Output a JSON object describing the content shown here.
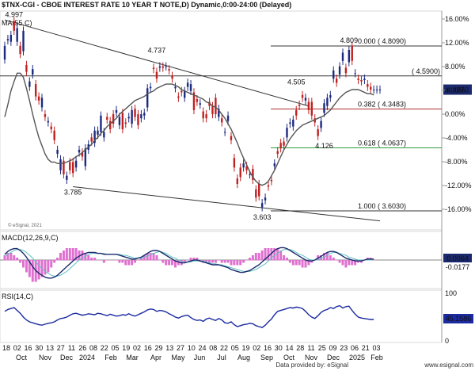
{
  "chart_data": {
    "type": "candlestick",
    "title": "$TNX-CGI - CBOE INTEREST RATE 10 YEAR T NOTE,D) Dynamic,0:00-24:00 (Delayed)",
    "copyright": "© eSignal, 2021",
    "indicator_ma_label": "MA(55,C)",
    "last_price_label": "4.4870",
    "pct_axis_labels": [
      "16.00%",
      "12.00%",
      "8.00%",
      "4.00%",
      "0.00%",
      "-4.00%",
      "-8.00%",
      "-12.00%",
      "-16.00%"
    ],
    "x_axis_day_labels": [
      "18",
      "02",
      "16",
      "30",
      "13",
      "27",
      "11",
      "26",
      "08",
      "22",
      "05",
      "19",
      "02",
      "16",
      "29",
      "13",
      "27",
      "10",
      "24",
      "08",
      "22",
      "05",
      "19",
      "02",
      "16",
      "30",
      "14",
      "28",
      "11",
      "25",
      "09",
      "23",
      "06",
      "21",
      "03"
    ],
    "x_axis_month_labels": [
      "Oct",
      "Nov",
      "Dec",
      "2024",
      "Feb",
      "Mar",
      "Apr",
      "May",
      "Jun",
      "Jul",
      "Aug",
      "Sep",
      "Oct",
      "Nov",
      "Dec",
      "2025",
      "Feb"
    ],
    "annotations": {
      "high_2023": "4.997",
      "low_2023": "3.785",
      "high_apr": "4.737",
      "low_sep": "3.603",
      "high_jul": "4.505",
      "low_dec": "4.126",
      "high_jan": "4.809"
    },
    "fib_levels": [
      {
        "label": "0.000 ( 4.8090)",
        "value": 4.809,
        "color": "#333333"
      },
      {
        "label": "( 4.5900)",
        "value": 4.59,
        "color": "#333333"
      },
      {
        "label": "0.382 ( 4.3483)",
        "value": 4.3483,
        "color": "#b03030"
      },
      {
        "label": "0.618 ( 4.0637)",
        "value": 4.0637,
        "color": "#2e9e3e"
      },
      {
        "label": "1.000 ( 3.6030)",
        "value": 3.603,
        "color": "#333333"
      }
    ],
    "trendlines": [
      {
        "name": "upper downtrend",
        "from": [
          0,
          5.0
        ],
        "to": [
          98,
          4.37
        ]
      },
      {
        "name": "lower downtrend",
        "from": [
          22,
          3.78
        ],
        "to": [
          121,
          3.53
        ]
      }
    ],
    "series": [
      {
        "type": "candles",
        "candles": [
          [
            4.71,
            4.81
          ],
          [
            4.85,
            4.86
          ],
          [
            4.84,
            4.89
          ],
          [
            4.99,
            4.92
          ],
          [
            4.84,
            4.94
          ],
          [
            4.81,
            4.75
          ],
          [
            4.77,
            4.92
          ],
          [
            4.67,
            4.62
          ],
          [
            4.51,
            4.55
          ],
          [
            4.6,
            4.64
          ],
          [
            4.53,
            4.44
          ],
          [
            4.44,
            4.41
          ],
          [
            4.36,
            4.43
          ],
          [
            4.31,
            4.29
          ],
          [
            4.25,
            4.26
          ],
          [
            4.22,
            4.2
          ],
          [
            4.19,
            4.12
          ],
          [
            4.02,
            4.05
          ],
          [
            3.9,
            3.98
          ],
          [
            3.97,
            3.87
          ],
          [
            3.83,
            3.86
          ],
          [
            3.96,
            3.9
          ],
          [
            3.96,
            3.88
          ],
          [
            3.92,
            3.97
          ],
          [
            4.03,
            4.05
          ],
          [
            4.03,
            4.0
          ],
          [
            3.93,
            4.06
          ],
          [
            4.05,
            4.09
          ],
          [
            4.14,
            4.11
          ],
          [
            4.1,
            4.19
          ],
          [
            4.16,
            4.19
          ],
          [
            4.18,
            4.3
          ],
          [
            4.14,
            4.18
          ],
          [
            4.29,
            4.27
          ],
          [
            4.26,
            4.2
          ],
          [
            4.31,
            4.24
          ],
          [
            4.32,
            4.34
          ],
          [
            4.23,
            4.29
          ],
          [
            4.32,
            4.2
          ],
          [
            4.25,
            4.24
          ],
          [
            4.28,
            4.29
          ],
          [
            4.24,
            4.34
          ],
          [
            4.35,
            4.29
          ],
          [
            4.31,
            4.23
          ],
          [
            4.28,
            4.31
          ],
          [
            4.3,
            4.32
          ],
          [
            4.36,
            4.5
          ],
          [
            4.5,
            4.51
          ],
          [
            4.65,
            4.64
          ],
          [
            4.62,
            4.57
          ],
          [
            4.65,
            4.66
          ],
          [
            4.66,
            4.65
          ],
          [
            4.66,
            4.66
          ],
          [
            4.64,
            4.63
          ],
          [
            4.59,
            4.57
          ],
          [
            4.5,
            4.51
          ],
          [
            4.44,
            4.43
          ],
          [
            4.48,
            4.47
          ],
          [
            4.43,
            4.48
          ],
          [
            4.51,
            4.54
          ],
          [
            4.48,
            4.53
          ],
          [
            4.47,
            4.34
          ],
          [
            4.42,
            4.4
          ],
          [
            4.38,
            4.39
          ],
          [
            4.33,
            4.28
          ],
          [
            4.31,
            4.28
          ],
          [
            4.4,
            4.37
          ],
          [
            4.37,
            4.31
          ],
          [
            4.43,
            4.31
          ],
          [
            4.29,
            4.35
          ],
          [
            4.28,
            4.25
          ],
          [
            4.18,
            4.18
          ],
          [
            4.26,
            4.3
          ],
          [
            4.15,
            4.12
          ],
          [
            3.99,
            3.92
          ],
          [
            3.84,
            3.8
          ],
          [
            3.92,
            3.85
          ],
          [
            3.92,
            3.95
          ],
          [
            3.93,
            3.9
          ],
          [
            3.87,
            3.87
          ],
          [
            3.91,
            3.83
          ],
          [
            3.76,
            3.7
          ],
          [
            3.8,
            3.71
          ],
          [
            3.63,
            3.66
          ],
          [
            3.68,
            3.7
          ],
          [
            3.79,
            3.78
          ],
          [
            3.83,
            3.82
          ],
          [
            3.93,
            3.95
          ],
          [
            4.04,
            4.02
          ],
          [
            4.1,
            4.06
          ],
          [
            4.11,
            4.08
          ],
          [
            4.14,
            4.21
          ],
          [
            4.24,
            4.25
          ],
          [
            4.22,
            4.27
          ],
          [
            4.34,
            4.3
          ],
          [
            4.38,
            4.37
          ],
          [
            4.45,
            4.43
          ],
          [
            4.41,
            4.43
          ],
          [
            4.4,
            4.34
          ],
          [
            4.4,
            4.3
          ],
          [
            4.28,
            4.25
          ],
          [
            4.2,
            4.15
          ],
          [
            4.21,
            4.26
          ],
          [
            4.32,
            4.39
          ],
          [
            4.37,
            4.43
          ],
          [
            4.43,
            4.45
          ],
          [
            4.57,
            4.63
          ],
          [
            4.57,
            4.54
          ],
          [
            4.6,
            4.66
          ],
          [
            4.7,
            4.76
          ],
          [
            4.65,
            4.61
          ],
          [
            4.69,
            4.78
          ],
          [
            4.81,
            4.7
          ],
          [
            4.61,
            4.61
          ],
          [
            4.57,
            4.56
          ],
          [
            4.56,
            4.55
          ],
          [
            4.56,
            4.57
          ],
          [
            4.53,
            4.51
          ],
          [
            4.51,
            4.49
          ],
          [
            4.49,
            4.49
          ],
          [
            4.49,
            4.49
          ],
          [
            4.49,
            4.49
          ]
        ]
      },
      {
        "type": "moving_average",
        "name": "MA(55,C)",
        "values": [
          4.29,
          4.38,
          4.48,
          4.55,
          4.61,
          4.61,
          4.58,
          4.5,
          4.41,
          4.31,
          4.22,
          4.14,
          4.08,
          4.02,
          3.98,
          3.96,
          3.96,
          3.95,
          3.95,
          3.95,
          3.96,
          3.97,
          3.98,
          4.0,
          4.01,
          4.03,
          4.05,
          4.07,
          4.09,
          4.12,
          4.14,
          4.17,
          4.19,
          4.22,
          4.24,
          4.26,
          4.28,
          4.31,
          4.33,
          4.35,
          4.37,
          4.39,
          4.41,
          4.42,
          4.43,
          4.44,
          4.46,
          4.47,
          4.48,
          4.5,
          4.51,
          4.52,
          4.53,
          4.53,
          4.53,
          4.52,
          4.51,
          4.49,
          4.48,
          4.47,
          4.46,
          4.45,
          4.44,
          4.43,
          4.42,
          4.4,
          4.39,
          4.37,
          4.36,
          4.34,
          4.31,
          4.28,
          4.24,
          4.2,
          4.15,
          4.1,
          4.04,
          3.99,
          3.94,
          3.89,
          3.85,
          3.82,
          3.8,
          3.79,
          3.8,
          3.82,
          3.86,
          3.9,
          3.95,
          4.0,
          4.05,
          4.09,
          4.13,
          4.16,
          4.19,
          4.21,
          4.23,
          4.24,
          4.25,
          4.26,
          4.27,
          4.28,
          4.29,
          4.3,
          4.32,
          4.34,
          4.37,
          4.4,
          4.43,
          4.45,
          4.47,
          4.48,
          4.49,
          4.49,
          4.49,
          4.48,
          4.47,
          4.46,
          4.46,
          4.45
        ]
      }
    ],
    "macd": {
      "label": "MACD(12,26,9,C)",
      "value_label": "0.0064",
      "value_label2": "-0.0177",
      "macd": [
        0.06,
        0.09,
        0.11,
        0.12,
        0.12,
        0.1,
        0.07,
        0.03,
        -0.02,
        -0.07,
        -0.11,
        -0.14,
        -0.16,
        -0.18,
        -0.19,
        -0.19,
        -0.18,
        -0.16,
        -0.13,
        -0.1,
        -0.07,
        -0.04,
        -0.01,
        0.02,
        0.04,
        0.06,
        0.07,
        0.08,
        0.08,
        0.08,
        0.07,
        0.07,
        0.06,
        0.06,
        0.06,
        0.06,
        0.06,
        0.05,
        0.04,
        0.03,
        0.02,
        0.01,
        0.01,
        0.02,
        0.03,
        0.05,
        0.07,
        0.09,
        0.1,
        0.1,
        0.09,
        0.07,
        0.05,
        0.03,
        0.01,
        -0.01,
        -0.02,
        -0.03,
        -0.03,
        -0.02,
        -0.01,
        0.0,
        0.0,
        -0.01,
        -0.02,
        -0.03,
        -0.04,
        -0.05,
        -0.05,
        -0.05,
        -0.06,
        -0.07,
        -0.08,
        -0.1,
        -0.11,
        -0.12,
        -0.13,
        -0.13,
        -0.12,
        -0.11,
        -0.09,
        -0.07,
        -0.05,
        -0.02,
        0.01,
        0.04,
        0.07,
        0.1,
        0.12,
        0.13,
        0.13,
        0.12,
        0.1,
        0.08,
        0.06,
        0.04,
        0.02,
        0.0,
        -0.01,
        -0.01,
        0.0,
        0.02,
        0.04,
        0.06,
        0.08,
        0.09,
        0.09,
        0.08,
        0.06,
        0.04,
        0.02,
        0.01,
        0.0,
        -0.01,
        -0.01,
        -0.01,
        0.0,
        0.01,
        0.01,
        0.01
      ],
      "signal": [
        0.04,
        0.06,
        0.08,
        0.1,
        0.11,
        0.11,
        0.1,
        0.08,
        0.05,
        0.02,
        -0.02,
        -0.06,
        -0.09,
        -0.12,
        -0.14,
        -0.16,
        -0.17,
        -0.17,
        -0.16,
        -0.14,
        -0.12,
        -0.09,
        -0.06,
        -0.03,
        0.0,
        0.02,
        0.04,
        0.06,
        0.07,
        0.07,
        0.07,
        0.07,
        0.07,
        0.06,
        0.06,
        0.06,
        0.06,
        0.06,
        0.05,
        0.05,
        0.04,
        0.03,
        0.02,
        0.02,
        0.02,
        0.03,
        0.04,
        0.06,
        0.07,
        0.08,
        0.09,
        0.08,
        0.07,
        0.05,
        0.03,
        0.02,
        0.0,
        -0.01,
        -0.02,
        -0.02,
        -0.02,
        -0.01,
        -0.01,
        -0.01,
        -0.01,
        -0.02,
        -0.03,
        -0.04,
        -0.04,
        -0.05,
        -0.05,
        -0.06,
        -0.07,
        -0.08,
        -0.09,
        -0.1,
        -0.11,
        -0.12,
        -0.12,
        -0.12,
        -0.11,
        -0.1,
        -0.08,
        -0.06,
        -0.04,
        -0.01,
        0.02,
        0.05,
        0.07,
        0.09,
        0.11,
        0.11,
        0.11,
        0.1,
        0.08,
        0.06,
        0.05,
        0.03,
        0.01,
        0.0,
        0.0,
        0.0,
        0.02,
        0.03,
        0.05,
        0.07,
        0.08,
        0.08,
        0.07,
        0.06,
        0.05,
        0.03,
        0.02,
        0.01,
        0.0,
        0.0,
        0.0,
        0.0,
        0.0,
        0.01
      ],
      "histogram_note": "magenta bars = MACD minus signal"
    },
    "rsi": {
      "label": "RSI(14,C)",
      "value_label": "45.1586",
      "ticks": [
        "100",
        "0"
      ],
      "values": [
        62,
        66,
        68,
        70,
        64,
        58,
        50,
        44,
        40,
        38,
        36,
        34,
        33,
        35,
        37,
        38,
        40,
        44,
        47,
        48,
        50,
        54,
        57,
        58,
        56,
        54,
        55,
        57,
        56,
        55,
        58,
        57,
        55,
        53,
        56,
        54,
        52,
        53,
        55,
        54,
        57,
        54,
        52,
        55,
        58,
        61,
        65,
        67,
        66,
        62,
        64,
        63,
        61,
        57,
        54,
        50,
        48,
        51,
        53,
        54,
        49,
        45,
        43,
        44,
        41,
        46,
        48,
        45,
        43,
        47,
        44,
        38,
        37,
        40,
        34,
        30,
        32,
        34,
        35,
        37,
        36,
        32,
        30,
        28,
        33,
        40,
        46,
        55,
        62,
        64,
        66,
        68,
        70,
        69,
        71,
        70,
        68,
        62,
        55,
        50,
        47,
        53,
        60,
        64,
        66,
        70,
        68,
        72,
        74,
        69,
        72,
        73,
        64,
        56,
        50,
        48,
        47,
        46,
        45,
        45
      ]
    },
    "footer": {
      "copyright_line": "Data provided by: eSignal",
      "site": "www.esignal.com"
    }
  }
}
